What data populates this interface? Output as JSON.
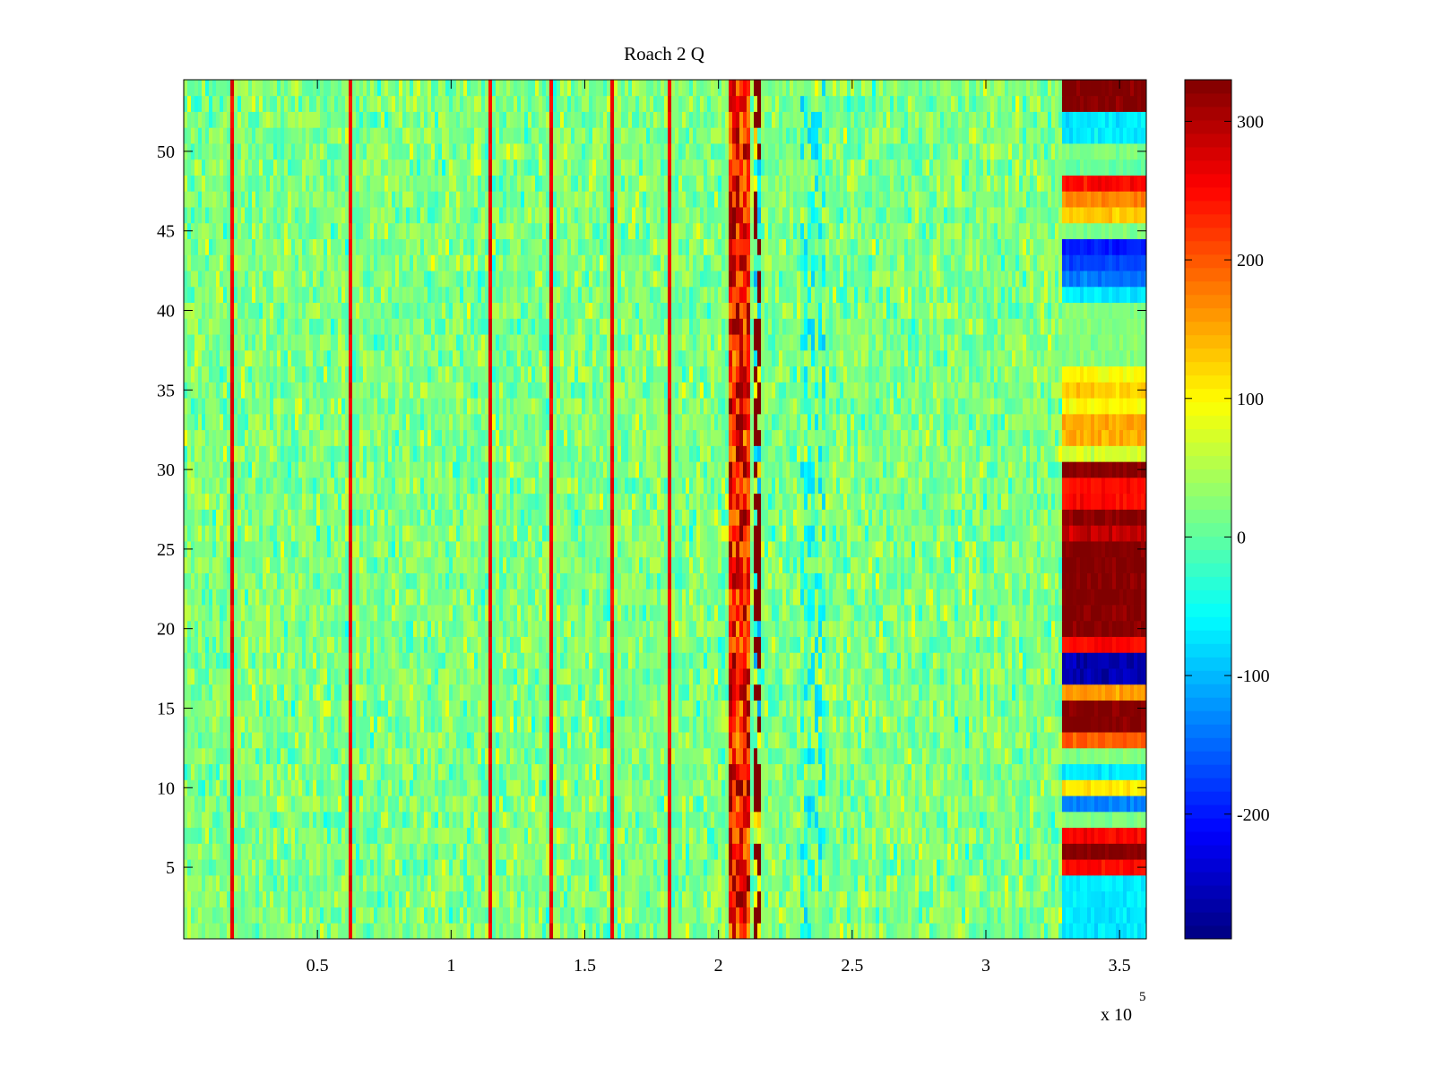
{
  "chart_data": {
    "type": "heatmap",
    "title": "Roach 2 Q",
    "xlabel": "",
    "ylabel": "",
    "x_multiplier_label": "x 10",
    "x_multiplier_exponent": "5",
    "xlim": [
      0,
      360000
    ],
    "ylim": [
      0.5,
      54.5
    ],
    "x_ticks": [
      50000,
      100000,
      150000,
      200000,
      250000,
      300000,
      350000
    ],
    "x_tick_labels": [
      "0.5",
      "1",
      "1.5",
      "2",
      "2.5",
      "3",
      "3.5"
    ],
    "y_ticks": [
      5,
      10,
      15,
      20,
      25,
      30,
      35,
      40,
      45,
      50
    ],
    "y_tick_labels": [
      "5",
      "10",
      "15",
      "20",
      "25",
      "30",
      "35",
      "40",
      "45",
      "50"
    ],
    "rows": 54,
    "colormap": "jet",
    "clim": [
      -290,
      330
    ],
    "colorbar": {
      "location": "right",
      "ticks": [
        -200,
        -100,
        0,
        100,
        200,
        300
      ],
      "tick_labels": [
        "-200",
        "-100",
        "0",
        "100",
        "200",
        "300"
      ]
    },
    "background_level": 20,
    "thin_spikes_x": [
      18500,
      63000,
      114000,
      138000,
      160000,
      182000
    ],
    "spike_level": 260,
    "hot_band": {
      "x_range": [
        204000,
        212000
      ],
      "level_range": [
        150,
        330
      ]
    },
    "narrow_band": {
      "x_range": [
        213000,
        216000
      ]
    },
    "faint_band": {
      "x_range": [
        230000,
        240000
      ],
      "level": -70
    },
    "right_block": {
      "x_range": [
        328000,
        360000
      ],
      "row_levels": [
        -70,
        -70,
        -70,
        -70,
        250,
        330,
        250,
        20,
        -140,
        110,
        -70,
        20,
        200,
        330,
        330,
        160,
        -260,
        -260,
        250,
        330,
        330,
        330,
        330,
        330,
        330,
        290,
        330,
        250,
        250,
        330,
        70,
        150,
        150,
        100,
        130,
        100,
        20,
        20,
        20,
        20,
        -70,
        -140,
        -170,
        -200,
        20,
        130,
        170,
        250,
        0,
        20,
        -70,
        -70,
        330,
        330
      ]
    }
  }
}
